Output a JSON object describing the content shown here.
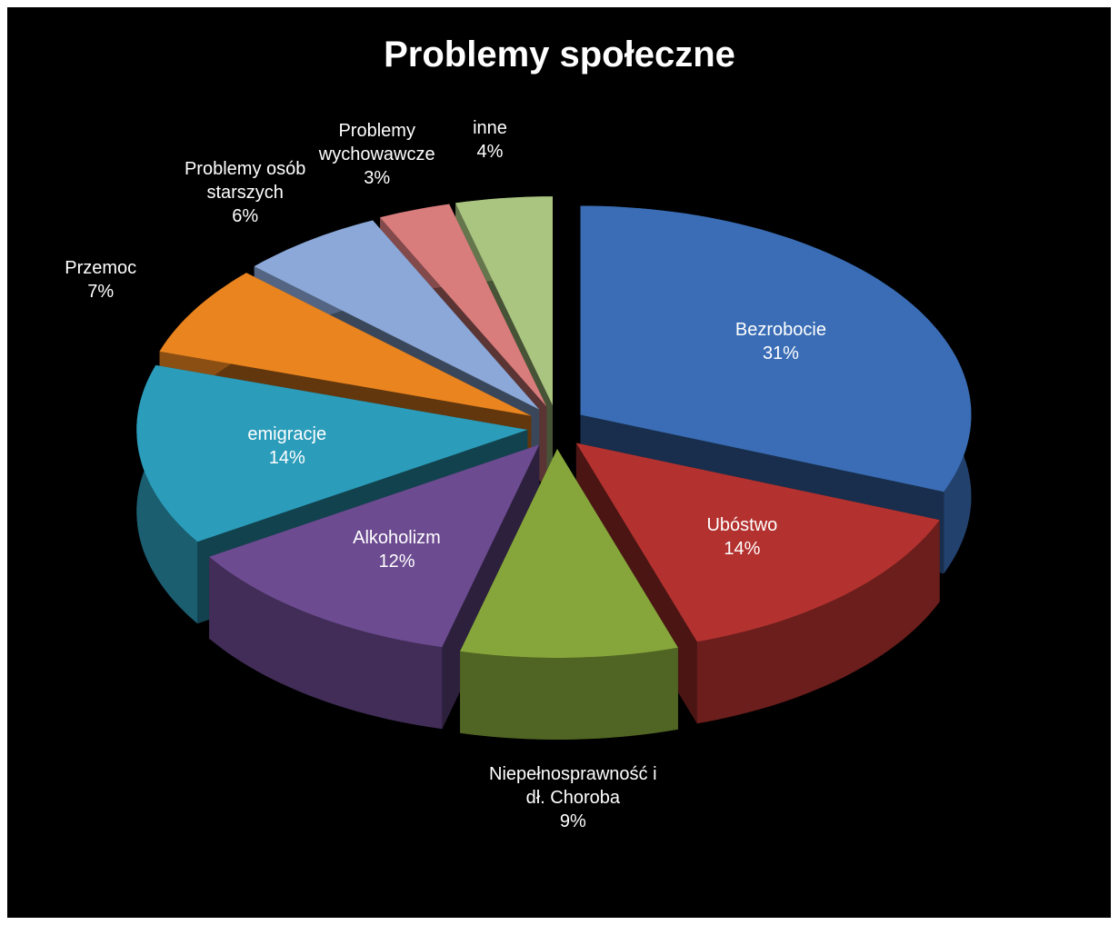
{
  "chart_data": {
    "type": "pie",
    "title": "Problemy społeczne",
    "categories": [
      "Bezrobocie",
      "Ubóstwo",
      "Niepełnosprawność i dł. Choroba",
      "Alkoholizm",
      "emigracje",
      "Przemoc",
      "Problemy osób starszych",
      "Problemy wychowawcze",
      "inne"
    ],
    "values": [
      31,
      14,
      9,
      12,
      14,
      7,
      6,
      3,
      4
    ],
    "value_labels": [
      "31%",
      "14%",
      "9%",
      "12%",
      "14%",
      "7%",
      "6%",
      "3%",
      "4%"
    ],
    "colors": [
      "#3a6db5",
      "#b3322f",
      "#86a63b",
      "#6c4b91",
      "#2b9cba",
      "#ea841f",
      "#8ba8d8",
      "#d97c7c",
      "#a9c580"
    ]
  }
}
